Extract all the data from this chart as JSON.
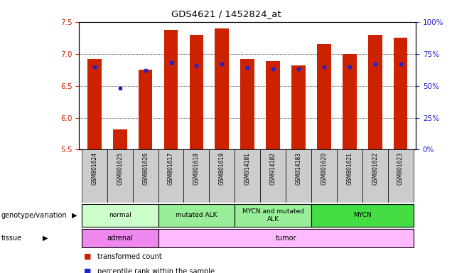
{
  "title": "GDS4621 / 1452824_at",
  "samples": [
    "GSM801624",
    "GSM801625",
    "GSM801626",
    "GSM801617",
    "GSM801618",
    "GSM801619",
    "GSM914181",
    "GSM914182",
    "GSM914183",
    "GSM801620",
    "GSM801621",
    "GSM801622",
    "GSM801623"
  ],
  "bar_heights": [
    6.92,
    5.82,
    6.75,
    7.38,
    7.3,
    7.4,
    6.92,
    6.88,
    6.82,
    7.15,
    7.0,
    7.3,
    7.25
  ],
  "percentile_ranks": [
    65,
    48,
    62,
    68,
    66,
    67,
    64,
    63,
    63,
    65,
    65,
    67,
    67
  ],
  "ylim_left": [
    5.5,
    7.5
  ],
  "ylim_right": [
    0,
    100
  ],
  "yticks_left": [
    5.5,
    6.0,
    6.5,
    7.0,
    7.5
  ],
  "yticks_right": [
    0,
    25,
    50,
    75,
    100
  ],
  "bar_color": "#cc2200",
  "dot_color": "#2222cc",
  "bar_bottom": 5.5,
  "bar_width": 0.55,
  "genotype_groups": [
    {
      "label": "normal",
      "start": 0,
      "end": 3,
      "color": "#ccffcc"
    },
    {
      "label": "mutated ALK",
      "start": 3,
      "end": 6,
      "color": "#99ee99"
    },
    {
      "label": "MYCN and mutated\nALK",
      "start": 6,
      "end": 9,
      "color": "#99ee99"
    },
    {
      "label": "MYCN",
      "start": 9,
      "end": 13,
      "color": "#44dd44"
    }
  ],
  "tissue_groups": [
    {
      "label": "adrenal",
      "start": 0,
      "end": 3,
      "color": "#ee88ee"
    },
    {
      "label": "tumor",
      "start": 3,
      "end": 13,
      "color": "#ffbbff"
    }
  ],
  "legend_items": [
    {
      "label": "transformed count",
      "color": "#cc2200"
    },
    {
      "label": "percentile rank within the sample",
      "color": "#2222cc"
    }
  ],
  "row_label_genotype": "genotype/variation",
  "row_label_tissue": "tissue",
  "left_axis_color": "#cc2200",
  "right_axis_color": "#2222cc"
}
